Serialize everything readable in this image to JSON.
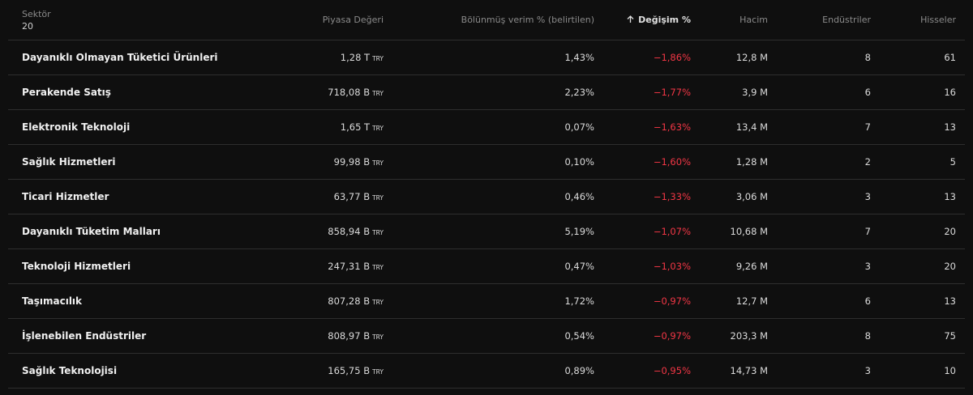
{
  "header": {
    "columns": [
      "Sektör",
      "Piyasa Değeri",
      "Bölünmüş verim % (belirtilen)",
      "Değişim %",
      "Hacim",
      "Endüstriler",
      "Hisseler"
    ],
    "count": "20"
  },
  "table": {
    "rows": [
      [
        "Dayanıklı Olmayan Tüketici Ürünleri",
        {
          "value": "1,28 T",
          "currency": "TRY"
        },
        "1,43%",
        "−1,86%",
        "12,8 M",
        "8",
        "61"
      ],
      [
        "Perakende Satış",
        {
          "value": "718,08 B",
          "currency": "TRY"
        },
        "2,23%",
        "−1,77%",
        "3,9 M",
        "6",
        "16"
      ],
      [
        "Elektronik Teknoloji",
        {
          "value": "1,65 T",
          "currency": "TRY"
        },
        "0,07%",
        "−1,63%",
        "13,4 M",
        "7",
        "13"
      ],
      [
        "Sağlık Hizmetleri",
        {
          "value": "99,98 B",
          "currency": "TRY"
        },
        "0,10%",
        "−1,60%",
        "1,28 M",
        "2",
        "5"
      ],
      [
        "Ticari Hizmetler",
        {
          "value": "63,77 B",
          "currency": "TRY"
        },
        "0,46%",
        "−1,33%",
        "3,06 M",
        "3",
        "13"
      ],
      [
        "Dayanıklı Tüketim Malları",
        {
          "value": "858,94 B",
          "currency": "TRY"
        },
        "5,19%",
        "−1,07%",
        "10,68 M",
        "7",
        "20"
      ],
      [
        "Teknoloji Hizmetleri",
        {
          "value": "247,31 B",
          "currency": "TRY"
        },
        "0,47%",
        "−1,03%",
        "9,26 M",
        "3",
        "20"
      ],
      [
        "Taşımacılık",
        {
          "value": "807,28 B",
          "currency": "TRY"
        },
        "1,72%",
        "−0,97%",
        "12,7 M",
        "6",
        "13"
      ],
      [
        "İşlenebilen Endüstriler",
        {
          "value": "808,97 B",
          "currency": "TRY"
        },
        "0,54%",
        "−0,97%",
        "203,3 M",
        "8",
        "75"
      ],
      [
        "Sağlık Teknolojisi",
        {
          "value": "165,75 B",
          "currency": "TRY"
        },
        "0,89%",
        "−0,95%",
        "14,73 M",
        "3",
        "10"
      ]
    ]
  }
}
